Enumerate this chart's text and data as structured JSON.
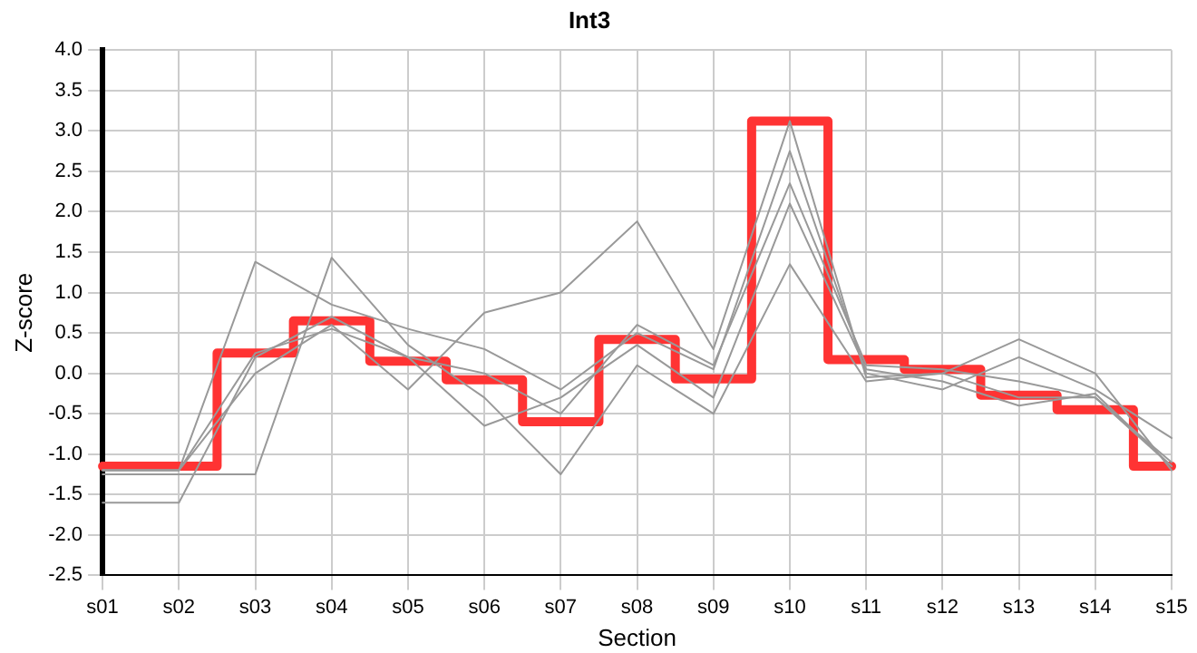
{
  "chart_data": {
    "type": "line",
    "title": "Int3",
    "xlabel": "Section",
    "ylabel": "Z-score",
    "categories": [
      "s01",
      "s02",
      "s03",
      "s04",
      "s05",
      "s06",
      "s07",
      "s08",
      "s09",
      "s10",
      "s11",
      "s12",
      "s13",
      "s14",
      "s15"
    ],
    "series": [
      {
        "color": "#999999",
        "values": [
          -1.2,
          -1.2,
          1.38,
          0.85,
          0.55,
          0.3,
          -0.2,
          0.5,
          0.05,
          2.75,
          0.0,
          -0.2,
          0.2,
          -0.2,
          -0.8
        ]
      },
      {
        "color": "#999999",
        "values": [
          -1.25,
          -1.25,
          -1.25,
          1.43,
          0.35,
          -0.3,
          -1.25,
          0.1,
          -0.5,
          1.35,
          -0.1,
          0.0,
          0.42,
          0.0,
          -1.2
        ]
      },
      {
        "color": "#999999",
        "values": [
          -1.2,
          -1.2,
          0.0,
          0.6,
          -0.2,
          0.75,
          1.0,
          1.88,
          0.3,
          3.12,
          -0.05,
          0.0,
          -0.3,
          -0.3,
          -1.15
        ]
      },
      {
        "color": "#999999",
        "values": [
          -1.6,
          -1.6,
          0.2,
          0.7,
          0.2,
          -0.65,
          -0.3,
          0.35,
          -0.3,
          2.1,
          0.05,
          -0.1,
          -0.4,
          -0.25,
          -1.15
        ]
      },
      {
        "color": "#999999",
        "values": [
          -1.2,
          -1.2,
          0.25,
          0.55,
          0.2,
          0.0,
          -0.5,
          0.6,
          0.1,
          2.35,
          0.1,
          0.05,
          -0.1,
          -0.3,
          -1.1
        ]
      },
      {
        "type": "step",
        "color": "#ff3333",
        "values": [
          -1.15,
          -1.15,
          0.25,
          0.65,
          0.15,
          -0.08,
          -0.6,
          0.42,
          -0.07,
          3.12,
          0.17,
          0.05,
          -0.27,
          -0.45,
          -1.15
        ]
      }
    ],
    "ylim": [
      -2.5,
      4.0
    ],
    "yticks": [
      {
        "value": -2.5,
        "label": "-2.5"
      },
      {
        "value": -2,
        "label": "-2.0"
      },
      {
        "value": -1.5,
        "label": "-1.5"
      },
      {
        "value": -1,
        "label": "-1.0"
      },
      {
        "value": -0.5,
        "label": "-0.5"
      },
      {
        "value": 0,
        "label": "0.0"
      },
      {
        "value": 0.5,
        "label": "0.5"
      },
      {
        "value": 1,
        "label": "1.0"
      },
      {
        "value": 1.5,
        "label": "1.5"
      },
      {
        "value": 2,
        "label": "2.0"
      },
      {
        "value": 2.5,
        "label": "2.5"
      },
      {
        "value": 3,
        "label": "3.0"
      },
      {
        "value": 3.5,
        "label": "3.5"
      },
      {
        "value": 4,
        "label": "4.0"
      }
    ],
    "grid": true,
    "legend": false,
    "marker": "none"
  }
}
